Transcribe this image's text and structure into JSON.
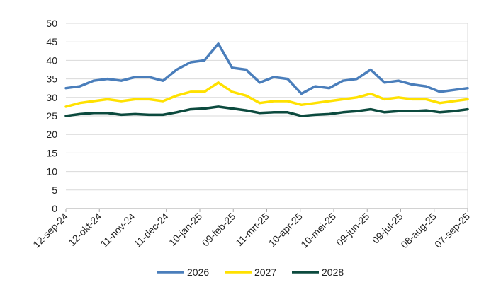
{
  "chart_data": {
    "type": "line",
    "x_tick_labels": [
      "12-sep-24",
      "12-okt-24",
      "11-nov-24",
      "11-dec-24",
      "10-jan-25",
      "09-feb-25",
      "11-mrt-25",
      "10-apr-25",
      "10-mei-25",
      "09-jun-25",
      "09-jul-25",
      "08-aug-25",
      "07-sep-25"
    ],
    "ylim": [
      0,
      50
    ],
    "y_ticks": [
      0,
      5,
      10,
      15,
      20,
      25,
      30,
      35,
      40,
      45,
      50
    ],
    "grid": "horizontal",
    "legend_position": "bottom",
    "x": [
      "12-sep-24",
      "27-sep-24",
      "12-okt-24",
      "27-okt-24",
      "11-nov-24",
      "26-nov-24",
      "11-dec-24",
      "26-dec-24",
      "10-jan-25",
      "25-jan-25",
      "02-feb-25",
      "09-feb-25",
      "17-feb-25",
      "24-feb-25",
      "11-mrt-25",
      "26-mrt-25",
      "10-apr-25",
      "17-apr-25",
      "25-apr-25",
      "10-mei-25",
      "25-mei-25",
      "09-jun-25",
      "16-jun-25",
      "24-jun-25",
      "09-jul-25",
      "24-jul-25",
      "08-aug-25",
      "16-aug-25",
      "23-aug-25",
      "07-sep-25"
    ],
    "series": [
      {
        "name": "2026",
        "color": "#4A7EBB",
        "values": [
          32.5,
          33.0,
          34.5,
          35.0,
          34.5,
          35.5,
          35.5,
          34.5,
          37.5,
          39.5,
          40.0,
          44.5,
          38.0,
          37.5,
          34.0,
          35.5,
          35.0,
          31.0,
          33.0,
          32.5,
          34.5,
          35.0,
          37.5,
          34.0,
          34.5,
          33.5,
          33.0,
          31.5,
          32.0,
          32.5
        ]
      },
      {
        "name": "2027",
        "color": "#FFE100",
        "values": [
          27.5,
          28.5,
          29.0,
          29.5,
          29.0,
          29.5,
          29.5,
          29.0,
          30.5,
          31.5,
          31.5,
          34.0,
          31.5,
          30.5,
          28.5,
          29.0,
          29.0,
          28.0,
          28.5,
          29.0,
          29.5,
          30.0,
          31.0,
          29.5,
          30.0,
          29.5,
          29.5,
          28.5,
          29.0,
          29.5
        ]
      },
      {
        "name": "2028",
        "color": "#0C4A3E",
        "values": [
          25.0,
          25.5,
          25.8,
          25.8,
          25.3,
          25.5,
          25.3,
          25.3,
          26.0,
          26.8,
          27.0,
          27.5,
          27.0,
          26.5,
          25.8,
          26.0,
          26.0,
          25.0,
          25.3,
          25.5,
          26.0,
          26.3,
          26.8,
          26.0,
          26.3,
          26.3,
          26.5,
          26.0,
          26.3,
          26.8
        ]
      }
    ]
  }
}
